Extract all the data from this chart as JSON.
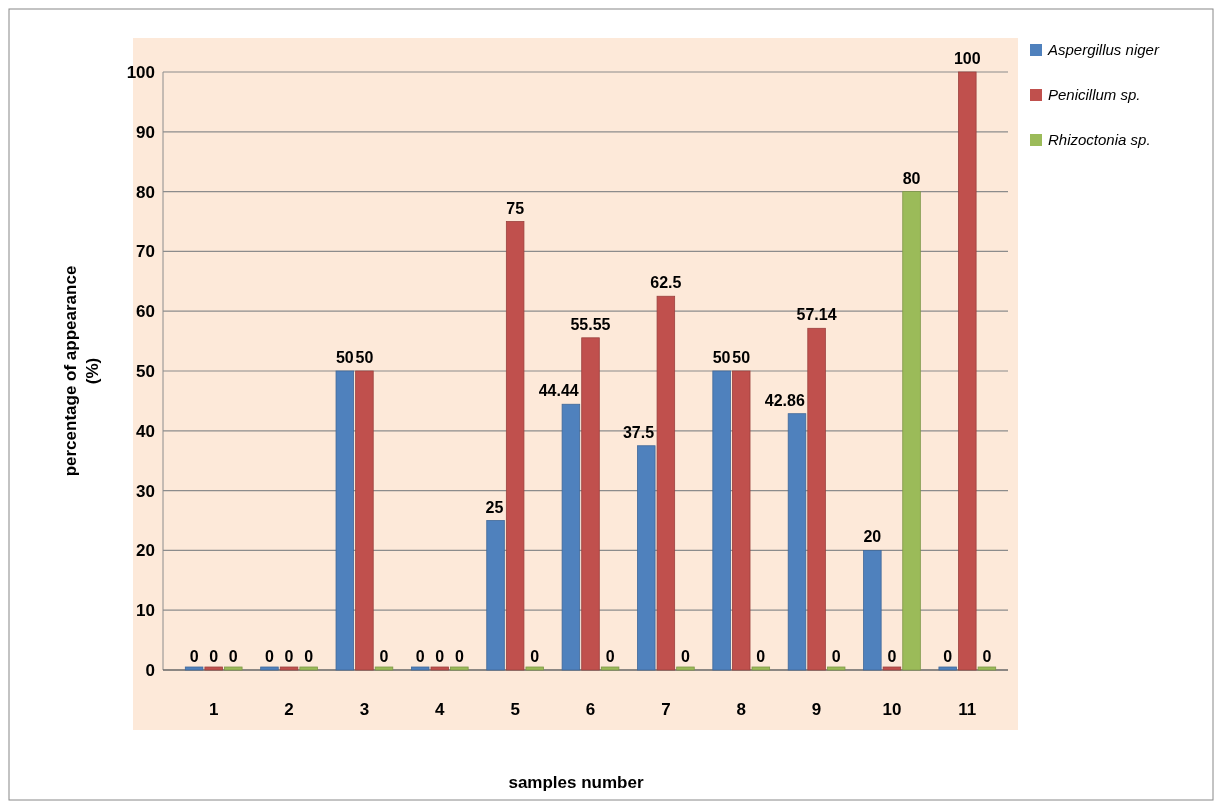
{
  "chart_data": {
    "type": "bar",
    "xlabel": "samples number",
    "ylabel": "percentage of appearance (%)",
    "categories": [
      "1",
      "2",
      "3",
      "4",
      "5",
      "6",
      "7",
      "8",
      "9",
      "10",
      "11"
    ],
    "series": [
      {
        "name": "Aspergillus niger",
        "color": "#4f81bd",
        "values": [
          0,
          0,
          50,
          0,
          25,
          44.44,
          37.5,
          50,
          42.86,
          20,
          0
        ]
      },
      {
        "name": "Penicillum sp.",
        "color": "#c0504d",
        "values": [
          0,
          0,
          50,
          0,
          75,
          55.55,
          62.5,
          50,
          57.14,
          0,
          100
        ]
      },
      {
        "name": "Rhizoctonia sp.",
        "color": "#9bbb59",
        "values": [
          0,
          0,
          0,
          0,
          0,
          0,
          0,
          0,
          0,
          80,
          0
        ]
      }
    ],
    "ylim": [
      0,
      100
    ],
    "yticks": [
      0,
      10,
      20,
      30,
      40,
      50,
      60,
      70,
      80,
      90,
      100
    ],
    "grid": "y",
    "legend": "top right",
    "data_labels": true
  }
}
